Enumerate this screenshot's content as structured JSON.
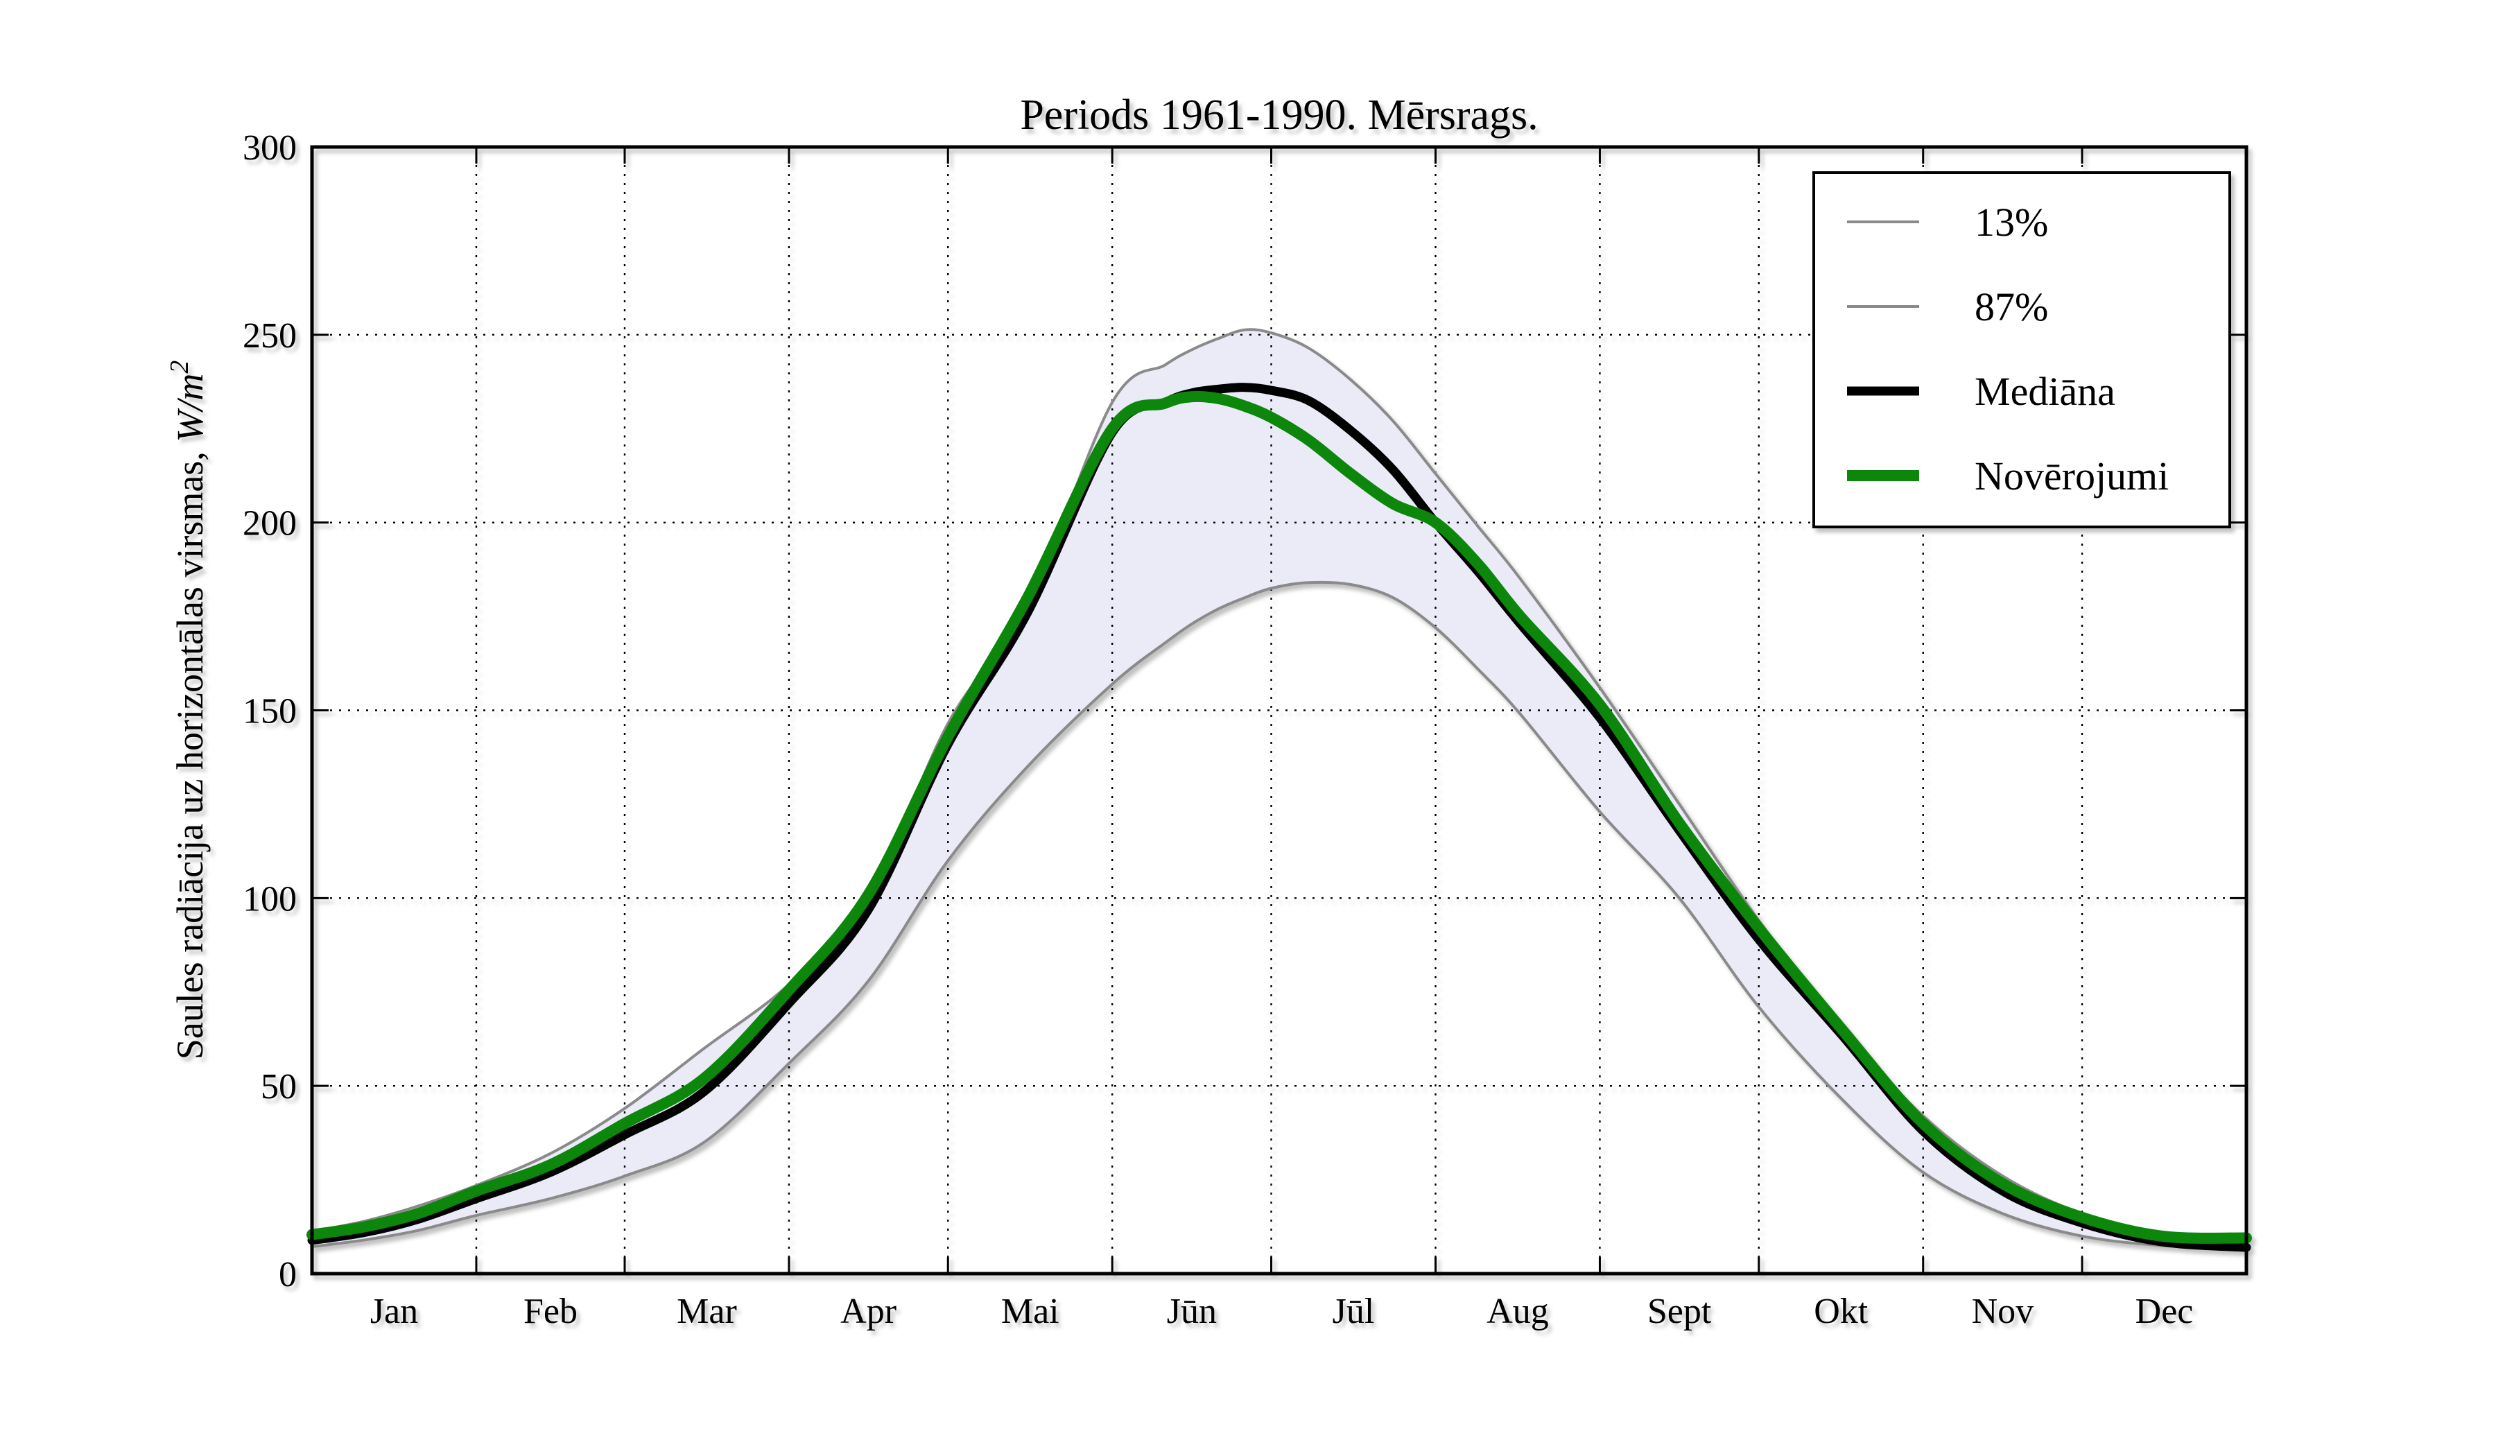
{
  "title": "Periods 1961-1990. Mērsrags.",
  "y_axis": {
    "label_prefix": "Saules radiācija uz horizontālas virsmas, ",
    "label_math": "W/m",
    "label_sup": "2",
    "tick_labels": [
      "0",
      "50",
      "100",
      "150",
      "200",
      "250",
      "300"
    ]
  },
  "colors": {
    "percentile_line": "#8a8a8a",
    "band_fill": "#ebebf8",
    "median_line": "#000000",
    "observation_line": "#0c870c",
    "grid": "#000000",
    "frame": "#000000",
    "background": "#ffffff"
  },
  "legend": {
    "entries": [
      {
        "label": "13%",
        "color": "#8a8a8a",
        "stroke_width": 4
      },
      {
        "label": "87%",
        "color": "#8a8a8a",
        "stroke_width": 4
      },
      {
        "label": "Mediāna",
        "color": "#000000",
        "stroke_width": 13
      },
      {
        "label": "Novērojumi",
        "color": "#0c870c",
        "stroke_width": 16
      }
    ],
    "position": "upper right"
  },
  "chart_data": {
    "type": "line",
    "title": "Periods 1961-1990. Mērsrags.",
    "xlabel": "",
    "ylabel": "Saules radiācija uz horizontālas virsmas, W/m²",
    "x_unit": "day_of_year",
    "x_tick_labels": [
      "Jan",
      "Feb",
      "Mar",
      "Apr",
      "Mai",
      "Jūn",
      "Jūl",
      "Aug",
      "Sept",
      "Okt",
      "Nov",
      "Dec"
    ],
    "month_lengths": [
      31,
      28,
      31,
      30,
      31,
      30,
      31,
      31,
      30,
      31,
      30,
      31
    ],
    "ylim": [
      0,
      300
    ],
    "y_ticks": [
      0,
      50,
      100,
      150,
      200,
      250,
      300
    ],
    "grid": true,
    "band_fill_between": [
      "13%",
      "87%"
    ],
    "days": [
      0,
      10,
      20,
      31,
      45,
      59,
      74,
      90,
      105,
      120,
      135,
      151,
      161,
      166,
      171,
      176,
      181,
      188,
      196,
      204,
      212,
      220,
      228,
      243,
      258,
      273,
      289,
      304,
      319,
      334,
      349,
      365
    ],
    "series": [
      {
        "name": "13%",
        "role": "lower-percentile",
        "color": "#8a8a8a",
        "stroke_width": 4,
        "values": [
          7.2,
          9,
          11.5,
          15.5,
          20,
          26,
          35,
          56,
          78,
          110,
          135,
          157,
          168,
          173,
          177,
          180,
          182.5,
          184,
          183.5,
          180,
          172,
          161,
          149,
          123,
          100,
          71,
          46,
          27,
          16,
          10,
          7.5,
          6.5
        ]
      },
      {
        "name": "87%",
        "role": "upper-percentile",
        "color": "#8a8a8a",
        "stroke_width": 4,
        "values": [
          11.2,
          14,
          18,
          23.5,
          32,
          44,
          60,
          77,
          100,
          146.5,
          178,
          232,
          242,
          246,
          249,
          251.3,
          250.5,
          246.5,
          238,
          227,
          213,
          199,
          185,
          156,
          125,
          94,
          65,
          42,
          26,
          16,
          11,
          10
        ]
      },
      {
        "name": "Mediāna",
        "role": "median",
        "color": "#000000",
        "stroke_width": 13,
        "values": [
          8.9,
          11,
          14.5,
          20,
          27,
          37,
          48.5,
          72,
          97,
          141,
          176,
          224,
          232,
          234.5,
          235.5,
          236,
          235.2,
          232.5,
          224.5,
          214,
          200,
          187,
          173,
          148,
          118,
          89,
          63,
          38,
          22,
          13.5,
          8.5,
          7
        ]
      },
      {
        "name": "Novērojumi",
        "role": "observations",
        "color": "#0c870c",
        "stroke_width": 16,
        "values": [
          10.4,
          12.5,
          16,
          22,
          29,
          40,
          52,
          75.5,
          101,
          143,
          180,
          225,
          231.8,
          233.5,
          233,
          231,
          228,
          222,
          213,
          205,
          200,
          189,
          175,
          151.5,
          120,
          92,
          64.5,
          40,
          24,
          15,
          10,
          9.5
        ]
      }
    ]
  }
}
